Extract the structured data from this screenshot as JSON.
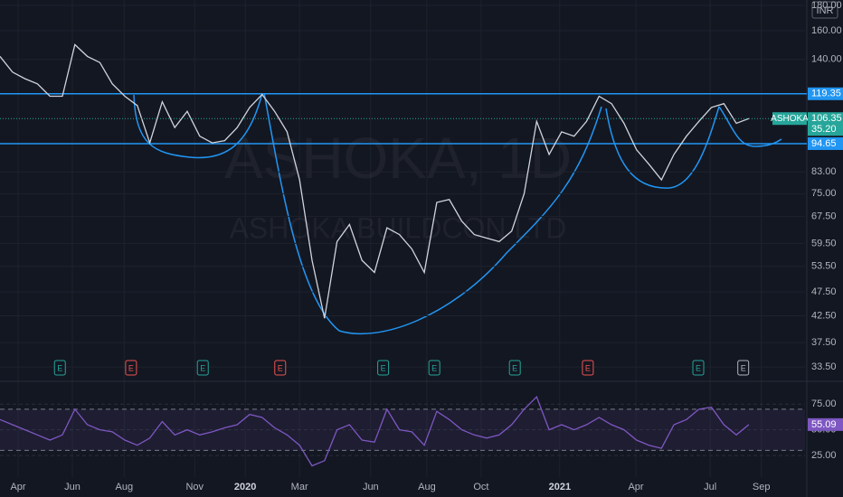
{
  "chart_data": [
    {
      "type": "line",
      "symbol": "ASHOKA",
      "watermark": "ASHOKA, 1D",
      "watermark_subtitle": "ASHOKA BUILDCON LTD",
      "currency": "INR",
      "log_scale": true,
      "grid": true,
      "color": "#d1d4dc",
      "x": [
        0,
        2,
        4,
        6,
        8,
        10,
        12,
        14,
        16,
        18,
        20,
        22,
        24,
        26,
        28,
        30,
        32,
        34,
        36,
        38,
        40,
        42,
        44,
        46,
        48,
        50,
        52,
        54,
        56,
        58,
        60,
        62,
        64,
        66,
        68,
        70,
        72,
        74,
        76,
        78,
        80,
        82,
        84,
        86,
        88,
        90,
        92,
        94,
        96,
        98,
        100,
        102,
        104,
        106,
        108,
        110,
        112,
        114,
        116,
        118,
        120
      ],
      "values": [
        142,
        132,
        128,
        125,
        118,
        118,
        150,
        142,
        138,
        125,
        118,
        113,
        95,
        115,
        102,
        110,
        98,
        95,
        96,
        102,
        112,
        119,
        110,
        100,
        80,
        55,
        42,
        60,
        65,
        55,
        52,
        64,
        62,
        58,
        52,
        72,
        73,
        66,
        62,
        61,
        60,
        63,
        75,
        105,
        90,
        100,
        98,
        105,
        118,
        114,
        104,
        92,
        86,
        80,
        90,
        98,
        105,
        112,
        114,
        104,
        106.35
      ],
      "change_label": "35.20",
      "xlim": [
        0,
        129
      ],
      "ylim": [
        31.6,
        184.6
      ],
      "yticks": [
        {
          "value": 33.5,
          "label": "33.50"
        },
        {
          "value": 37.5,
          "label": "37.50"
        },
        {
          "value": 42.5,
          "label": "42.50"
        },
        {
          "value": 47.5,
          "label": "47.50"
        },
        {
          "value": 53.5,
          "label": "53.50"
        },
        {
          "value": 59.5,
          "label": "59.50"
        },
        {
          "value": 67.5,
          "label": "67.50"
        },
        {
          "value": 75,
          "label": "75.00"
        },
        {
          "value": 83,
          "label": "83.00"
        },
        {
          "value": 140,
          "label": "140.00"
        },
        {
          "value": 160,
          "label": "160.00"
        },
        {
          "value": 180,
          "label": "180.00"
        }
      ],
      "levels": [
        119.35,
        94.65
      ],
      "level_color": "#2196f3",
      "events": [
        {
          "x": 9.6,
          "label": "E",
          "color": "#26a69a"
        },
        {
          "x": 21,
          "label": "E",
          "color": "#ef5350"
        },
        {
          "x": 32.5,
          "label": "E",
          "color": "#26a69a"
        },
        {
          "x": 44.9,
          "label": "E",
          "color": "#ef5350"
        },
        {
          "x": 61.4,
          "label": "E",
          "color": "#26a69a"
        },
        {
          "x": 69.6,
          "label": "E",
          "color": "#26a69a"
        },
        {
          "x": 82.5,
          "label": "E",
          "color": "#26a69a"
        },
        {
          "x": 94.2,
          "label": "E",
          "color": "#ef5350"
        },
        {
          "x": 111.9,
          "label": "E",
          "color": "#26a69a"
        },
        {
          "x": 119.1,
          "label": "E",
          "color": "#b2b5be"
        }
      ]
    },
    {
      "type": "line",
      "color": "#7e57c2",
      "x": [
        0,
        2,
        4,
        6,
        8,
        10,
        12,
        14,
        16,
        18,
        20,
        22,
        24,
        26,
        28,
        30,
        32,
        34,
        36,
        38,
        40,
        42,
        44,
        46,
        48,
        50,
        52,
        54,
        56,
        58,
        60,
        62,
        64,
        66,
        68,
        70,
        72,
        74,
        76,
        78,
        80,
        82,
        84,
        86,
        88,
        90,
        92,
        94,
        96,
        98,
        100,
        102,
        104,
        106,
        108,
        110,
        112,
        114,
        116,
        118,
        120
      ],
      "values": [
        60,
        55,
        50,
        45,
        40,
        45,
        70,
        55,
        50,
        48,
        40,
        35,
        42,
        58,
        45,
        50,
        45,
        48,
        52,
        55,
        65,
        62,
        52,
        45,
        35,
        15,
        20,
        50,
        55,
        40,
        38,
        70,
        50,
        48,
        35,
        68,
        60,
        50,
        45,
        42,
        45,
        55,
        70,
        82,
        50,
        55,
        50,
        55,
        62,
        55,
        50,
        40,
        35,
        32,
        55,
        60,
        70,
        72,
        55,
        45,
        55.09
      ],
      "bands": [
        70,
        30
      ],
      "xlim": [
        0,
        129
      ],
      "ylim": [
        4,
        94.5
      ],
      "yticks": [
        {
          "value": 25,
          "label": "25.00"
        },
        {
          "value": 50,
          "label": "50.00"
        },
        {
          "value": 75,
          "label": "75.00"
        }
      ],
      "xticks": [
        {
          "value": 2.9,
          "label": "Apr"
        },
        {
          "value": 11.6,
          "label": "Jun"
        },
        {
          "value": 19.9,
          "label": "Aug"
        },
        {
          "value": 31.2,
          "label": "Nov"
        },
        {
          "value": 39.3,
          "label": "2020"
        },
        {
          "value": 48,
          "label": "Mar"
        },
        {
          "value": 59.4,
          "label": "Jun"
        },
        {
          "value": 68.4,
          "label": "Aug"
        },
        {
          "value": 77.1,
          "label": "Oct"
        },
        {
          "value": 89.7,
          "label": "2021"
        },
        {
          "value": 101.9,
          "label": "Apr"
        },
        {
          "value": 113.8,
          "label": "Jul"
        },
        {
          "value": 122,
          "label": "Sep"
        }
      ]
    }
  ]
}
